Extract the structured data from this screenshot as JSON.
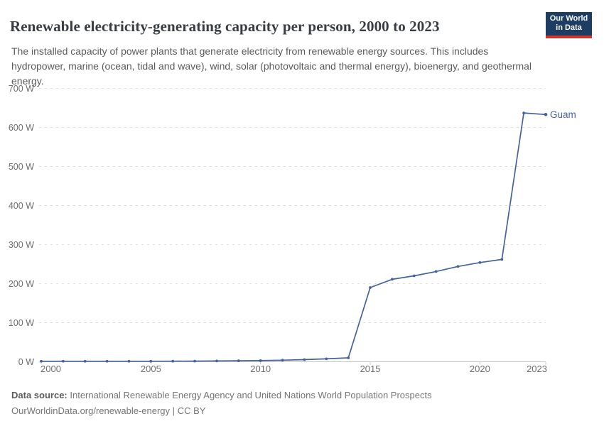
{
  "header": {
    "title": "Renewable electricity-generating capacity per person, 2000 to 2023",
    "subtitle": "The installed capacity of power plants that generate electricity from renewable energy sources. This includes hydropower, marine (ocean, tidal and wave), wind, solar (photovoltaic and thermal energy), bioenergy, and geothermal energy.",
    "logo": {
      "line1": "Our World",
      "line2": "in Data"
    }
  },
  "chart_data": {
    "type": "line",
    "title": "Renewable electricity-generating capacity per person, 2000 to 2023",
    "unit": "W",
    "xlabel": "",
    "ylabel": "",
    "xlim": [
      2000,
      2023
    ],
    "ylim": [
      0,
      700
    ],
    "y_ticks": [
      0,
      100,
      200,
      300,
      400,
      500,
      600,
      700
    ],
    "x_ticks": [
      2000,
      2005,
      2010,
      2015,
      2020,
      2023
    ],
    "grid": "horizontal-dashed",
    "legend_position": "end-of-line",
    "series": [
      {
        "name": "Guam",
        "x": [
          2000,
          2001,
          2002,
          2003,
          2004,
          2005,
          2006,
          2007,
          2008,
          2009,
          2010,
          2011,
          2012,
          2013,
          2014,
          2015,
          2016,
          2017,
          2018,
          2019,
          2020,
          2021,
          2022,
          2023
        ],
        "values": [
          1.2,
          1.2,
          1.2,
          1.2,
          1.2,
          1.3,
          1.5,
          1.7,
          2,
          2.5,
          3,
          4,
          5.5,
          7.5,
          10,
          190,
          211,
          220,
          231,
          244,
          254,
          262,
          637,
          633
        ]
      }
    ]
  },
  "colors": {
    "series": "#44639c",
    "grid": "#dedede",
    "axis": "#c8c8c8",
    "tick_label": "#6e6e6e",
    "logo_bg": "#1d3d63",
    "logo_red": "#d1342b"
  },
  "footer": {
    "datasource_label": "Data source:",
    "datasource_text": "International Renewable Energy Agency and United Nations World Population Prospects",
    "url": "OurWorldinData.org/renewable-energy",
    "separator": "|",
    "license": "CC BY"
  }
}
